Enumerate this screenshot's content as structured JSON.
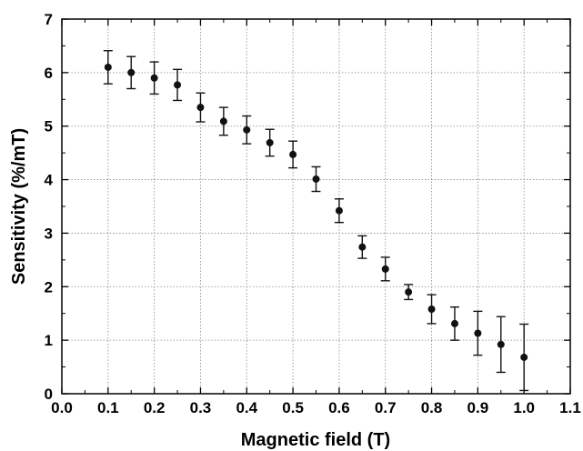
{
  "chart_data": {
    "type": "scatter",
    "title": "",
    "xlabel": "Magnetic field (T)",
    "ylabel": "Sensitivity (%/mT)",
    "xlim": [
      0.0,
      1.1
    ],
    "ylim": [
      0,
      7
    ],
    "x_ticks": [
      "0.0",
      "0.1",
      "0.2",
      "0.3",
      "0.4",
      "0.5",
      "0.6",
      "0.7",
      "0.8",
      "0.9",
      "1.0",
      "1.1"
    ],
    "y_ticks": [
      "0",
      "1",
      "2",
      "3",
      "4",
      "5",
      "6",
      "7"
    ],
    "grid": true,
    "legend": "none",
    "colors": {
      "points": "#111111",
      "grid": "#888888",
      "axis": "#000000"
    },
    "x": [
      0.1,
      0.15,
      0.2,
      0.25,
      0.3,
      0.35,
      0.4,
      0.45,
      0.5,
      0.55,
      0.6,
      0.65,
      0.7,
      0.75,
      0.8,
      0.85,
      0.9,
      0.95,
      1.0
    ],
    "y": [
      6.1,
      6.0,
      5.9,
      5.77,
      5.35,
      5.09,
      4.93,
      4.69,
      4.47,
      4.01,
      3.42,
      2.74,
      2.33,
      1.9,
      1.58,
      1.31,
      1.13,
      0.92,
      0.68
    ],
    "error": [
      0.31,
      0.3,
      0.3,
      0.29,
      0.27,
      0.26,
      0.26,
      0.25,
      0.25,
      0.23,
      0.22,
      0.21,
      0.22,
      0.14,
      0.27,
      0.31,
      0.41,
      0.52,
      0.62
    ]
  }
}
